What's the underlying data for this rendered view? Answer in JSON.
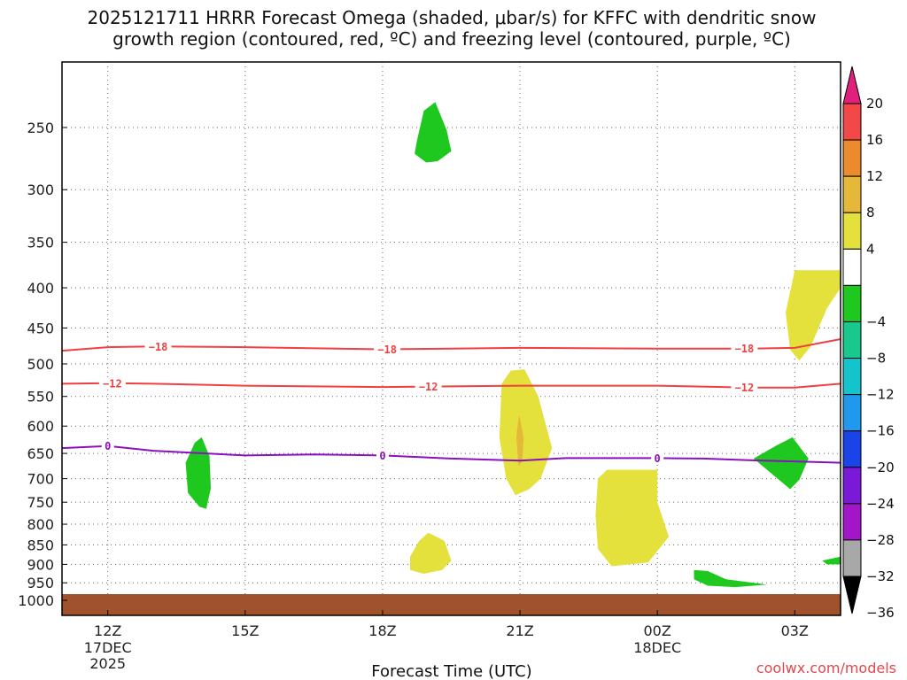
{
  "title_line1": "2025121711 HRRR Forecast Omega (shaded, μbar/s) for KFFC with dendritic snow",
  "title_line2": "growth region (contoured, red, ºC) and freezing level (contoured, purple, ºC)",
  "credit": "coolwx.com/models",
  "chart_data": {
    "type": "time-height cross section",
    "title": "2025121711 HRRR Forecast Omega (shaded, μbar/s) for KFFC with dendritic snow growth region (contoured, red, ºC) and freezing level (contoured, purple, ºC)",
    "xlabel": "Forecast Time (UTC)",
    "ylabel": "",
    "xlim": [
      11,
      28
    ],
    "ylim": [
      1000,
      200
    ],
    "x_ticks": [
      {
        "hour": 12,
        "label": "12Z",
        "date_line1": "17DEC",
        "date_line2": "2025"
      },
      {
        "hour": 15,
        "label": "15Z",
        "date_line1": "",
        "date_line2": ""
      },
      {
        "hour": 18,
        "label": "18Z",
        "date_line1": "",
        "date_line2": ""
      },
      {
        "hour": 21,
        "label": "21Z",
        "date_line1": "",
        "date_line2": ""
      },
      {
        "hour": 24,
        "label": "00Z",
        "date_line1": "18DEC",
        "date_line2": ""
      },
      {
        "hour": 27,
        "label": "03Z",
        "date_line1": "",
        "date_line2": ""
      }
    ],
    "y_ticks": [
      250,
      300,
      350,
      400,
      450,
      500,
      550,
      600,
      650,
      700,
      750,
      800,
      850,
      900,
      950,
      1000
    ],
    "colorbar": {
      "ticks": [
        "20",
        "16",
        "12",
        "8",
        "4",
        "−4",
        "−8",
        "−12",
        "−16",
        "−20",
        "−24",
        "−28",
        "−32",
        "−36"
      ],
      "levels": [
        {
          "lo": 20,
          "hi": 24,
          "color": "#e0207a",
          "shape": "arrow-up"
        },
        {
          "lo": 16,
          "hi": 20,
          "color": "#f24848"
        },
        {
          "lo": 12,
          "hi": 16,
          "color": "#ec8a2e"
        },
        {
          "lo": 8,
          "hi": 12,
          "color": "#e6b83a"
        },
        {
          "lo": 4,
          "hi": 8,
          "color": "#e4e03c"
        },
        {
          "lo": -4,
          "hi": 4,
          "color": "#ffffff"
        },
        {
          "lo": -8,
          "hi": -4,
          "color": "#1ec81e"
        },
        {
          "lo": -12,
          "hi": -8,
          "color": "#18c88c"
        },
        {
          "lo": -16,
          "hi": -12,
          "color": "#14c4cc"
        },
        {
          "lo": -20,
          "hi": -16,
          "color": "#2098ec"
        },
        {
          "lo": -24,
          "hi": -20,
          "color": "#1a44e8"
        },
        {
          "lo": -28,
          "hi": -24,
          "color": "#7a1ad8"
        },
        {
          "lo": -32,
          "hi": -28,
          "color": "#a216c8"
        },
        {
          "lo": -36,
          "hi": -32,
          "color": "#a8a8a8"
        },
        {
          "lo": -40,
          "hi": -36,
          "color": "#000000",
          "shape": "arrow-down"
        }
      ]
    },
    "terrain": {
      "color": "#a0522d",
      "top_pressure": 982
    },
    "contours": [
      {
        "name": "dgz -18",
        "color": "#f04040",
        "label": "−18",
        "points": [
          [
            11,
            481
          ],
          [
            12,
            476
          ],
          [
            13,
            475
          ],
          [
            15,
            476
          ],
          [
            18,
            479
          ],
          [
            21,
            477
          ],
          [
            24,
            478
          ],
          [
            26,
            478
          ],
          [
            27,
            477
          ],
          [
            28,
            465
          ]
        ],
        "labels_at": [
          13.1,
          18.1,
          25.9
        ]
      },
      {
        "name": "dgz -12",
        "color": "#f04040",
        "label": "−12",
        "points": [
          [
            11,
            530
          ],
          [
            12,
            529
          ],
          [
            13,
            530
          ],
          [
            15,
            533
          ],
          [
            18,
            535
          ],
          [
            21,
            533
          ],
          [
            24,
            533
          ],
          [
            26,
            536
          ],
          [
            27,
            536
          ],
          [
            28,
            530
          ]
        ],
        "labels_at": [
          12.1,
          19.0,
          25.9
        ]
      },
      {
        "name": "freezing level 0",
        "color": "#8a10c0",
        "label": "0",
        "points": [
          [
            11,
            640
          ],
          [
            12,
            636
          ],
          [
            13,
            645
          ],
          [
            15,
            654
          ],
          [
            16.5,
            652
          ],
          [
            18,
            654
          ],
          [
            19.5,
            660
          ],
          [
            21,
            664
          ],
          [
            22,
            659
          ],
          [
            24,
            659
          ],
          [
            25,
            660
          ],
          [
            26,
            663
          ],
          [
            28,
            668
          ]
        ],
        "labels_at": [
          12.0,
          18.0,
          24.0
        ]
      }
    ],
    "shaded_regions": [
      {
        "name": "negative omega 19Z upper",
        "value": "-4 to -8",
        "color": "#1ec81e",
        "polygon": [
          [
            18.75,
            260
          ],
          [
            18.9,
            238
          ],
          [
            19.15,
            232
          ],
          [
            19.4,
            252
          ],
          [
            19.5,
            268
          ],
          [
            19.2,
            276
          ],
          [
            18.95,
            277
          ],
          [
            18.7,
            270
          ]
        ]
      },
      {
        "name": "negative omega 14Z",
        "value": "-4 to -8",
        "color": "#1ec81e",
        "polygon": [
          [
            13.7,
            668
          ],
          [
            13.9,
            630
          ],
          [
            14.05,
            620
          ],
          [
            14.22,
            655
          ],
          [
            14.25,
            720
          ],
          [
            14.15,
            765
          ],
          [
            14.0,
            760
          ],
          [
            13.75,
            730
          ]
        ]
      },
      {
        "name": "positive omega 21Z",
        "value": "4 to 8",
        "color": "#e4e03c",
        "polygon": [
          [
            20.6,
            530
          ],
          [
            20.8,
            510
          ],
          [
            21.1,
            508
          ],
          [
            21.4,
            550
          ],
          [
            21.7,
            640
          ],
          [
            21.45,
            700
          ],
          [
            21.2,
            722
          ],
          [
            20.9,
            735
          ],
          [
            20.7,
            700
          ],
          [
            20.55,
            620
          ]
        ]
      },
      {
        "name": "positive omega 21Z core",
        "value": "8 to 12",
        "color": "#e6b83a",
        "polygon": [
          [
            20.92,
            620
          ],
          [
            20.98,
            580
          ],
          [
            21.08,
            620
          ],
          [
            21.05,
            665
          ],
          [
            20.97,
            675
          ]
        ]
      },
      {
        "name": "positive omega 19Z lower",
        "value": "4 to 8",
        "color": "#e4e03c",
        "polygon": [
          [
            18.6,
            880
          ],
          [
            18.8,
            840
          ],
          [
            19.0,
            820
          ],
          [
            19.35,
            840
          ],
          [
            19.5,
            890
          ],
          [
            19.3,
            915
          ],
          [
            18.9,
            925
          ],
          [
            18.6,
            915
          ]
        ]
      },
      {
        "name": "positive omega 00Z",
        "value": "4 to 8",
        "color": "#e4e03c",
        "polygon": [
          [
            22.7,
            700
          ],
          [
            22.9,
            682
          ],
          [
            24.0,
            682
          ],
          [
            24.0,
            750
          ],
          [
            24.25,
            830
          ],
          [
            23.8,
            895
          ],
          [
            23.0,
            905
          ],
          [
            22.7,
            860
          ],
          [
            22.65,
            780
          ]
        ]
      },
      {
        "name": "positive omega 03Z",
        "value": "4 to 8",
        "color": "#e4e03c",
        "polygon": [
          [
            27.0,
            380
          ],
          [
            28.0,
            380
          ],
          [
            28.0,
            400
          ],
          [
            27.7,
            425
          ],
          [
            27.35,
            475
          ],
          [
            27.1,
            495
          ],
          [
            26.9,
            480
          ],
          [
            26.8,
            430
          ]
        ]
      },
      {
        "name": "negative omega 03Z",
        "value": "-4 to -8",
        "color": "#1ec81e",
        "polygon": [
          [
            26.1,
            660
          ],
          [
            26.6,
            635
          ],
          [
            26.95,
            620
          ],
          [
            27.3,
            660
          ],
          [
            27.1,
            702
          ],
          [
            26.9,
            722
          ],
          [
            26.5,
            690
          ]
        ]
      },
      {
        "name": "negative omega 01Z",
        "value": "-4 to -8",
        "color": "#1ec81e",
        "polygon": [
          [
            24.8,
            915
          ],
          [
            25.1,
            918
          ],
          [
            25.5,
            940
          ],
          [
            26.4,
            955
          ],
          [
            25.7,
            962
          ],
          [
            25.1,
            958
          ],
          [
            24.8,
            940
          ]
        ]
      },
      {
        "name": "negative omega 05Z",
        "value": "-4 to -8",
        "color": "#1ec81e",
        "polygon": [
          [
            27.6,
            890
          ],
          [
            28.0,
            880
          ],
          [
            28.0,
            900
          ],
          [
            27.7,
            900
          ]
        ]
      }
    ]
  }
}
